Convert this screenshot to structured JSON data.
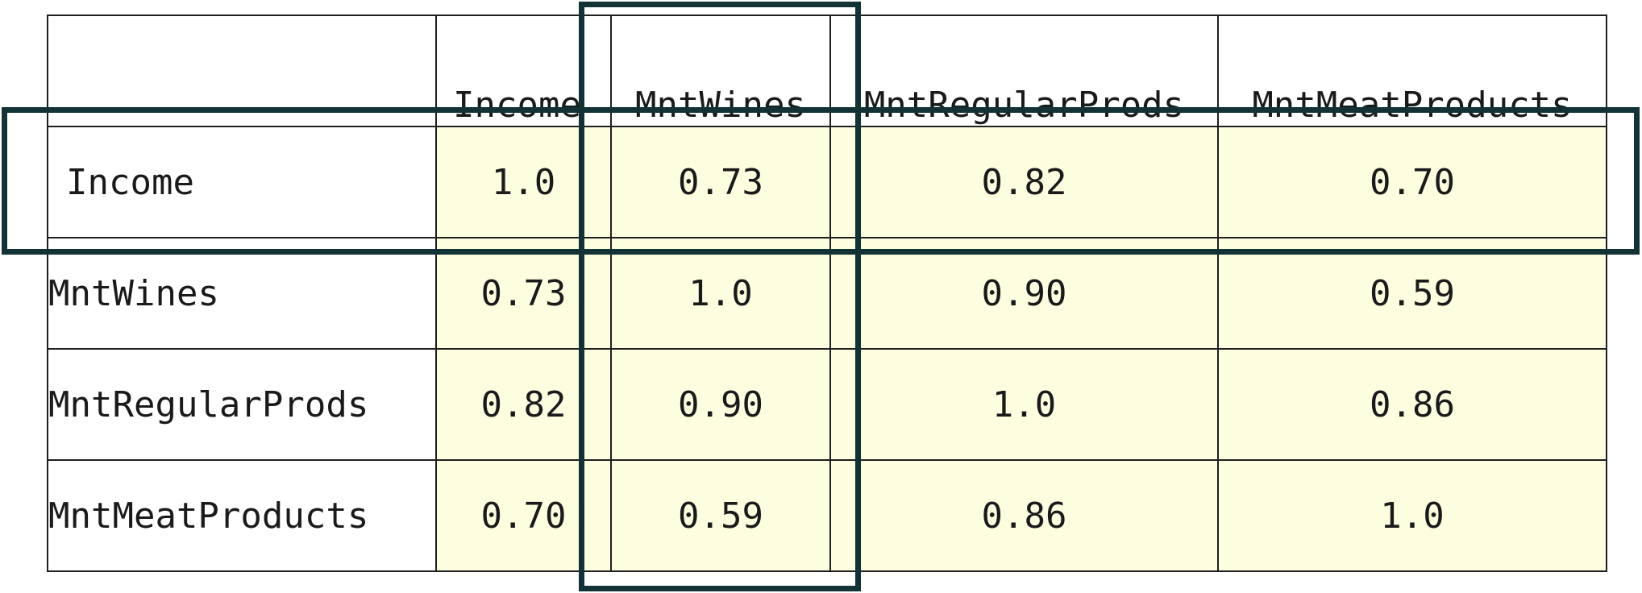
{
  "table": {
    "corner": "",
    "columns": [
      "Income",
      "MntWines",
      "MntRegularProds",
      "MntMeatProducts"
    ],
    "rows": [
      {
        "label": "Income",
        "values": [
          "1.0",
          "0.73",
          "0.82",
          "0.70"
        ]
      },
      {
        "label": "MntWines",
        "values": [
          "0.73",
          "1.0",
          "0.90",
          "0.59"
        ]
      },
      {
        "label": "MntRegularProds",
        "values": [
          "0.82",
          "0.90",
          "1.0",
          "0.86"
        ]
      },
      {
        "label": "MntMeatProducts",
        "values": [
          "0.70",
          "0.59",
          "0.86",
          "1.0"
        ]
      }
    ]
  },
  "colors": {
    "value_cell_bg": "#fdfde0",
    "grid_border": "#1f1f1f",
    "highlight_border": "#123236"
  }
}
